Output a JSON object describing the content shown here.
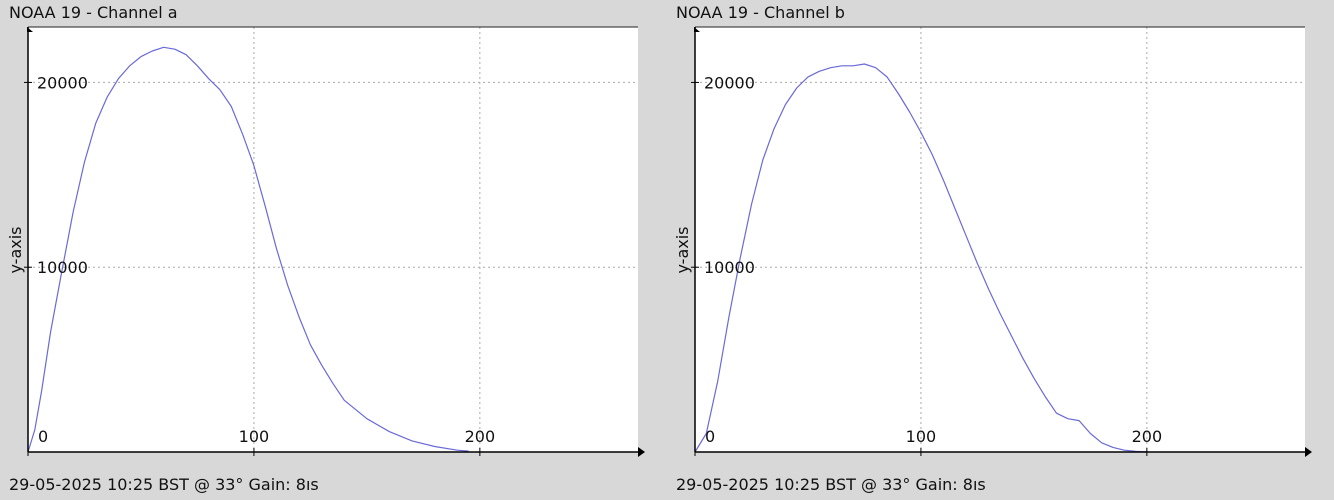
{
  "charts": [
    {
      "title": "NOAA 19 - Channel a",
      "footer": "29-05-2025 10:25 BST @ 33° Gain: 8ıs"
    },
    {
      "title": "NOAA 19 - Channel b",
      "footer": "29-05-2025 10:25 BST @ 33° Gain: 8ıs"
    }
  ],
  "chart_data": [
    {
      "type": "line",
      "title": "NOAA 19 - Channel a",
      "xlabel": "",
      "ylabel": "y-axis",
      "xlim": [
        0,
        270
      ],
      "ylim": [
        0,
        23000
      ],
      "xticks": [
        "0",
        "100",
        "200"
      ],
      "yticks": [
        "10000",
        "20000"
      ],
      "grid": true,
      "line_color": "#6a6ad8",
      "x": [
        0,
        3,
        6,
        10,
        15,
        20,
        25,
        30,
        35,
        40,
        45,
        50,
        55,
        60,
        65,
        70,
        75,
        80,
        85,
        90,
        95,
        100,
        105,
        110,
        115,
        120,
        125,
        130,
        135,
        140,
        150,
        160,
        170,
        180,
        190,
        195
      ],
      "y": [
        0,
        1200,
        3300,
        6500,
        9800,
        13000,
        15700,
        17800,
        19200,
        20200,
        20900,
        21400,
        21700,
        21900,
        21800,
        21500,
        20900,
        20200,
        19600,
        18700,
        17200,
        15500,
        13300,
        11000,
        9000,
        7300,
        5800,
        4700,
        3700,
        2800,
        1800,
        1100,
        600,
        300,
        100,
        50
      ]
    },
    {
      "type": "line",
      "title": "NOAA 19 - Channel b",
      "xlabel": "",
      "ylabel": "y-axis",
      "xlim": [
        0,
        270
      ],
      "ylim": [
        0,
        23000
      ],
      "xticks": [
        "0",
        "100",
        "200"
      ],
      "yticks": [
        "10000",
        "20000"
      ],
      "grid": true,
      "line_color": "#6a6ad8",
      "x": [
        0,
        5,
        10,
        15,
        20,
        25,
        30,
        35,
        40,
        45,
        50,
        55,
        60,
        65,
        70,
        75,
        80,
        85,
        90,
        95,
        100,
        105,
        110,
        115,
        120,
        125,
        130,
        135,
        140,
        145,
        150,
        155,
        160,
        165,
        170,
        175,
        180,
        185,
        190,
        195,
        200
      ],
      "y": [
        0,
        1000,
        3800,
        7300,
        10500,
        13400,
        15800,
        17500,
        18800,
        19700,
        20300,
        20600,
        20800,
        20900,
        20900,
        21000,
        20800,
        20300,
        19400,
        18400,
        17300,
        16100,
        14700,
        13200,
        11700,
        10200,
        8800,
        7500,
        6300,
        5100,
        4000,
        3000,
        2100,
        1800,
        1700,
        1000,
        500,
        250,
        100,
        40,
        10
      ]
    }
  ]
}
